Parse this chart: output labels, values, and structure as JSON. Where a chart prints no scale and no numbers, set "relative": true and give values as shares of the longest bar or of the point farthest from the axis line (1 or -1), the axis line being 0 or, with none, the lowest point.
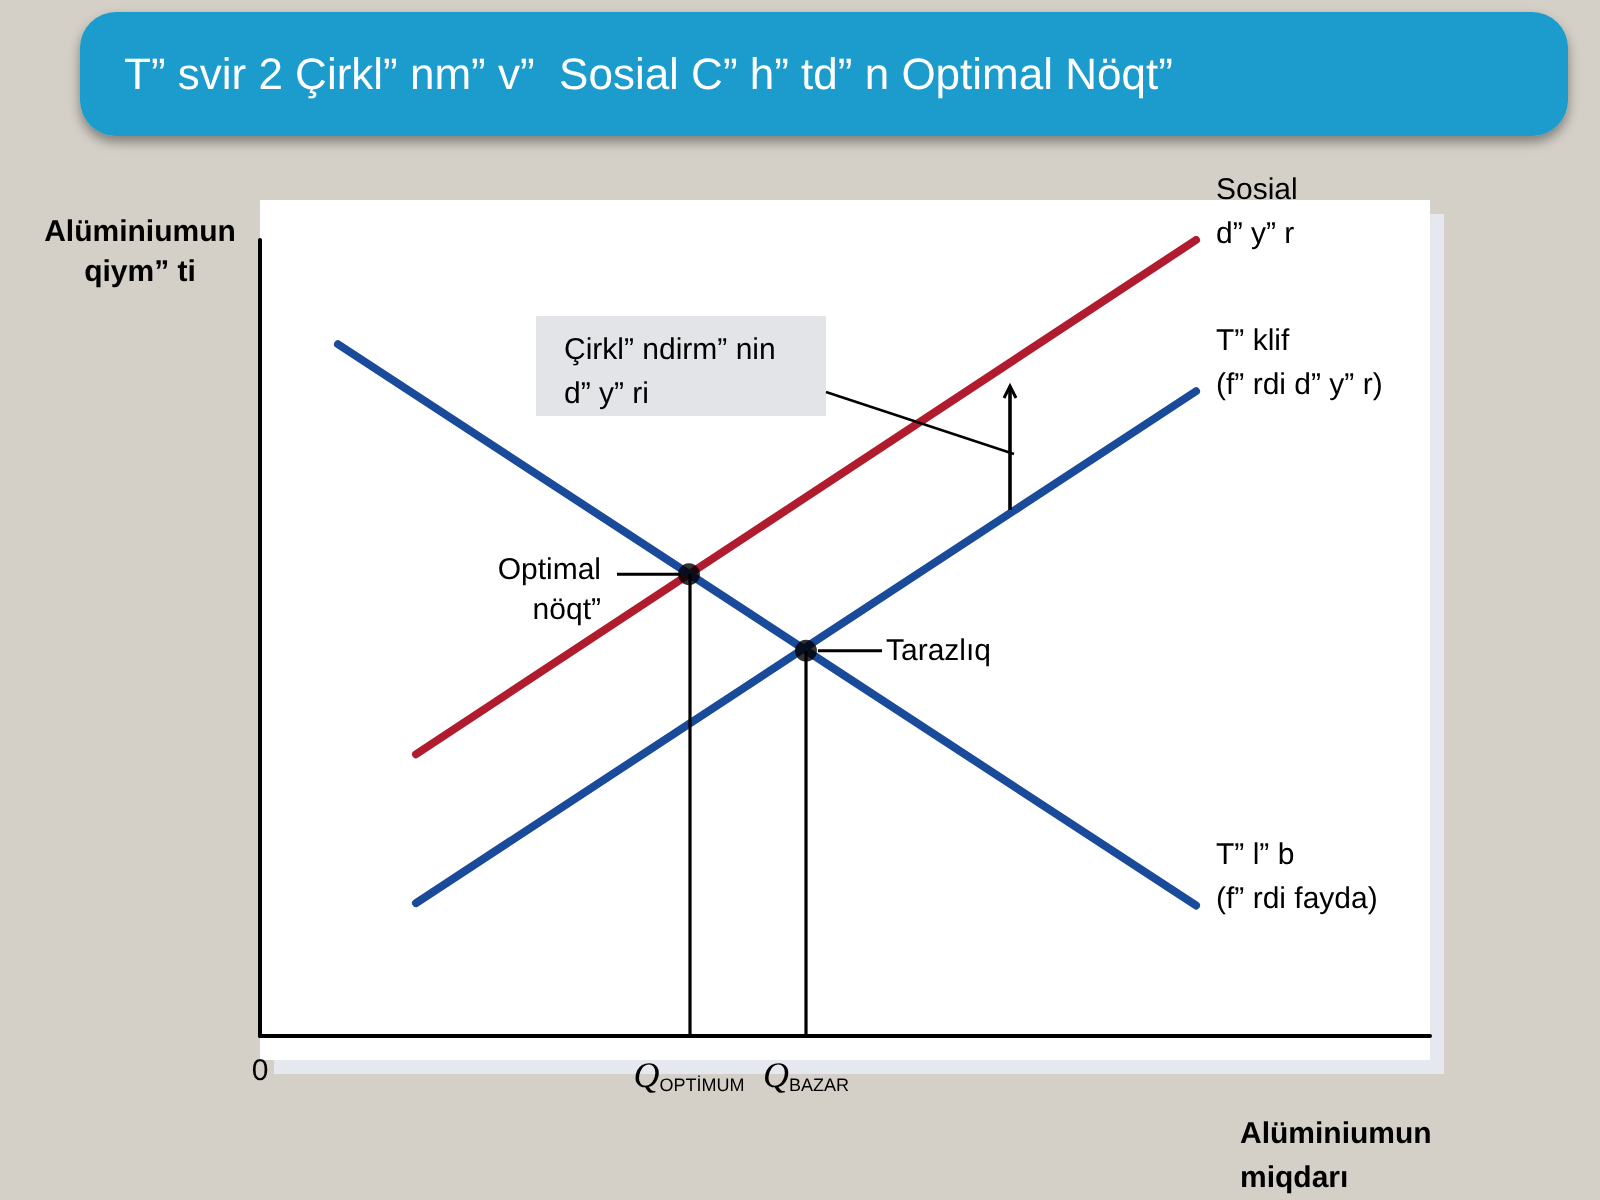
{
  "chart_data": {
    "type": "line",
    "title": "T” svir 2 Çirkl” nm” v”  Sosial C” h” td” n Optimal Nöqt”",
    "xlabel": "Alüminiumun\nmiqdarı",
    "ylabel": "Alüminiumun\nqiym” ti",
    "relative": true,
    "tick_labels": "x",
    "grid": false,
    "legend": false,
    "marker": "none",
    "line_style": "solid",
    "categories": [
      "0",
      null,
      null,
      null,
      null,
      null,
      null,
      null,
      null,
      null,
      null,
      "Q$_{OPTİMUM}$",
      null,
      null,
      "Q$_{BAZAR}$",
      null,
      null,
      null,
      null,
      null,
      null,
      null,
      null,
      null,
      null,
      null,
      null,
      null,
      null,
      null,
      null
    ],
    "series": [
      {
        "name": "Sosial\nd” y” r",
        "color": "#b01c2e",
        "values": [
          null,
          null,
          null,
          null,
          0.354,
          null,
          null,
          null,
          null,
          null,
          null,
          null,
          null,
          null,
          null,
          null,
          null,
          null,
          null,
          null,
          null,
          null,
          null,
          null,
          1.0,
          null,
          null,
          null,
          null,
          null,
          null
        ]
      },
      {
        "name": "T” klif\n(f” rdi d” y” r)",
        "color": "#1a4a9a",
        "values": [
          null,
          null,
          null,
          null,
          0.167,
          null,
          null,
          null,
          null,
          null,
          null,
          null,
          null,
          null,
          null,
          null,
          null,
          null,
          null,
          null,
          null,
          null,
          null,
          null,
          0.81,
          null,
          null,
          null,
          null,
          null,
          null
        ]
      },
      {
        "name": "T” l” b\n(f” rdi fayda)",
        "color": "#1a4a9a",
        "values": [
          null,
          null,
          0.869,
          null,
          null,
          null,
          null,
          null,
          null,
          null,
          null,
          null,
          null,
          null,
          null,
          null,
          null,
          null,
          null,
          null,
          null,
          null,
          null,
          null,
          0.164,
          null,
          null,
          null,
          null,
          null,
          null
        ]
      },
      {
        "type": "scatter",
        "color": "#000000",
        "marker": "circle",
        "values": [
          null,
          null,
          null,
          null,
          null,
          null,
          null,
          null,
          null,
          null,
          null,
          0.58,
          null,
          null,
          0.484,
          null,
          null,
          null,
          null,
          null,
          null,
          null,
          null,
          null,
          null,
          null,
          null,
          null,
          null,
          null,
          null
        ]
      }
    ],
    "annotations": [
      {
        "text": "Optimal\nnöqt”",
        "x": "Q$_{OPTİMUM}$",
        "y": 0.58
      },
      {
        "text": "Tarazlıq",
        "x": "Q$_{BAZAR}$",
        "y": 0.484
      },
      "Çirkl” ndirm” nin\nd” y” ri"
    ]
  }
}
